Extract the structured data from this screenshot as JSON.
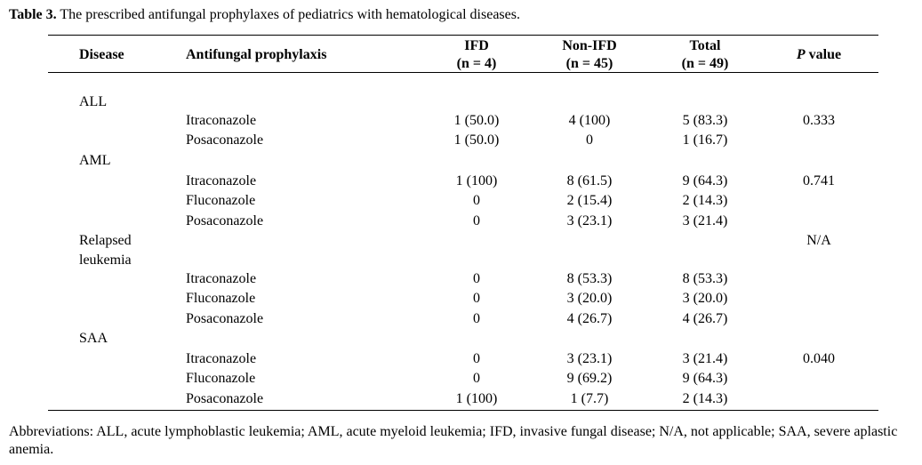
{
  "caption": {
    "label": "Table 3.",
    "text": " The prescribed antifungal prophylaxes of pediatrics with hematological diseases."
  },
  "headers": {
    "disease": "Disease",
    "prophylaxis": "Antifungal prophylaxis",
    "ifd": "IFD",
    "ifd_n": "(n = 4)",
    "nonifd": "Non-IFD",
    "nonifd_n": "(n = 45)",
    "total": "Total",
    "total_n": "(n = 49)",
    "p_italic": "P",
    "p_rest": " value"
  },
  "rows": [
    {
      "disease": "ALL",
      "drug": "",
      "ifd": "",
      "nonifd": "",
      "total": "",
      "p": ""
    },
    {
      "disease": "",
      "drug": "Itraconazole",
      "ifd": "1 (50.0)",
      "nonifd": "4 (100)",
      "total": "5 (83.3)",
      "p": "0.333"
    },
    {
      "disease": "",
      "drug": "Posaconazole",
      "ifd": "1 (50.0)",
      "nonifd": "0",
      "total": "1 (16.7)",
      "p": ""
    },
    {
      "disease": "AML",
      "drug": "",
      "ifd": "",
      "nonifd": "",
      "total": "",
      "p": ""
    },
    {
      "disease": "",
      "drug": "Itraconazole",
      "ifd": "1 (100)",
      "nonifd": "8 (61.5)",
      "total": "9 (64.3)",
      "p": "0.741"
    },
    {
      "disease": "",
      "drug": "Fluconazole",
      "ifd": "0",
      "nonifd": "2 (15.4)",
      "total": "2 (14.3)",
      "p": ""
    },
    {
      "disease": "",
      "drug": "Posaconazole",
      "ifd": "0",
      "nonifd": "3 (23.1)",
      "total": "3 (21.4)",
      "p": ""
    },
    {
      "disease": "Relapsed",
      "drug": "",
      "ifd": "",
      "nonifd": "",
      "total": "",
      "p": "N/A"
    },
    {
      "disease": "leukemia",
      "drug": "",
      "ifd": "",
      "nonifd": "",
      "total": "",
      "p": ""
    },
    {
      "disease": "",
      "drug": "Itraconazole",
      "ifd": "0",
      "nonifd": "8 (53.3)",
      "total": "8 (53.3)",
      "p": ""
    },
    {
      "disease": "",
      "drug": "Fluconazole",
      "ifd": "0",
      "nonifd": "3 (20.0)",
      "total": "3 (20.0)",
      "p": ""
    },
    {
      "disease": "",
      "drug": "Posaconazole",
      "ifd": "0",
      "nonifd": "4 (26.7)",
      "total": "4 (26.7)",
      "p": ""
    },
    {
      "disease": "SAA",
      "drug": "",
      "ifd": "",
      "nonifd": "",
      "total": "",
      "p": ""
    },
    {
      "disease": "",
      "drug": "Itraconazole",
      "ifd": "0",
      "nonifd": "3 (23.1)",
      "total": "3 (21.4)",
      "p": "0.040"
    },
    {
      "disease": "",
      "drug": "Fluconazole",
      "ifd": "0",
      "nonifd": "9 (69.2)",
      "total": "9 (64.3)",
      "p": ""
    },
    {
      "disease": "",
      "drug": "Posaconazole",
      "ifd": "1 (100)",
      "nonifd": "1 (7.7)",
      "total": "2 (14.3)",
      "p": ""
    }
  ],
  "footnote": "Abbreviations: ALL, acute lymphoblastic leukemia; AML, acute myeloid leukemia; IFD, invasive fungal disease; N/A, not applicable; SAA, severe aplastic anemia."
}
